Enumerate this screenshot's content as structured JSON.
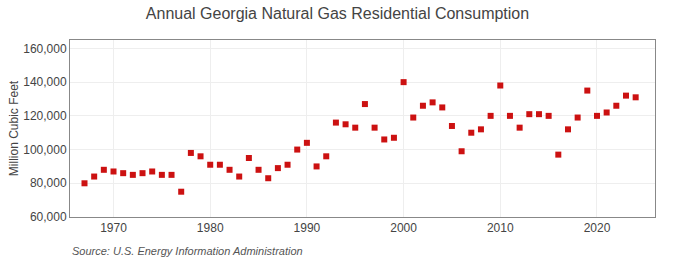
{
  "chart_data": {
    "type": "scatter",
    "title": "Annual Georgia Natural Gas Residential Consumption",
    "ylabel": "Million Cubic Feet",
    "annotations": [
      "Source: U.S. Energy Information Administration"
    ],
    "color": "#cc1111",
    "marker": "square",
    "grid": true,
    "xlim": [
      1965.5,
      2026
    ],
    "xticks": [
      1970,
      1980,
      1990,
      2000,
      2010,
      2020
    ],
    "ylim": [
      60000,
      165000
    ],
    "yticks": [
      {
        "value": 60000,
        "label": "60,000"
      },
      {
        "value": 80000,
        "label": "80,000"
      },
      {
        "value": 100000,
        "label": "100,000"
      },
      {
        "value": 120000,
        "label": "120,000"
      },
      {
        "value": 140000,
        "label": "140,000"
      },
      {
        "value": 160000,
        "label": "160,000"
      }
    ],
    "x": [
      1967,
      1968,
      1969,
      1970,
      1971,
      1972,
      1973,
      1974,
      1975,
      1976,
      1977,
      1978,
      1979,
      1980,
      1981,
      1982,
      1983,
      1984,
      1985,
      1986,
      1987,
      1988,
      1989,
      1990,
      1991,
      1992,
      1993,
      1994,
      1995,
      1996,
      1997,
      1998,
      1999,
      2000,
      2001,
      2002,
      2003,
      2004,
      2005,
      2006,
      2007,
      2008,
      2009,
      2010,
      2011,
      2012,
      2013,
      2014,
      2015,
      2016,
      2017,
      2018,
      2019,
      2020,
      2021,
      2022,
      2023,
      2024
    ],
    "values": [
      80000,
      84000,
      88000,
      87000,
      86000,
      85000,
      86000,
      87000,
      85000,
      85000,
      75000,
      98000,
      96000,
      91000,
      91000,
      88000,
      84000,
      95000,
      88000,
      83000,
      89000,
      91000,
      100000,
      104000,
      90000,
      96000,
      116000,
      115000,
      113000,
      127000,
      113000,
      106000,
      107000,
      140000,
      119000,
      126000,
      128000,
      125000,
      114000,
      99000,
      110000,
      112000,
      120000,
      138000,
      120000,
      113000,
      121000,
      121000,
      120000,
      97000,
      112000,
      119000,
      135000,
      120000,
      122000,
      126000,
      132000,
      131000
    ]
  }
}
